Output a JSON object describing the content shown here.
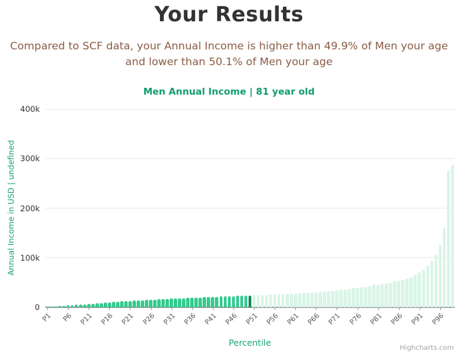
{
  "header": {
    "title": "Your Results",
    "subtitle_line1": "Compared to SCF data, your Annual Income is higher than 49.9% of Men your age",
    "subtitle_line2": "and lower than 50.1% of Men your age"
  },
  "chart": {
    "title": "Men Annual Income | 81 year old",
    "y_axis_title": "Annual Income in USD | undefined",
    "x_axis_title": "Percentile",
    "credit": "Highcharts.com",
    "colors": {
      "title_text": "#333333",
      "subtitle_text": "#8a5c44",
      "chart_title_green": "#0f9c6d",
      "axis_title_green": "#17a377",
      "bar_below": "#34cb8d",
      "bar_highlight": "#0e8d55",
      "bar_above": "#d9f5e8",
      "gridline": "#e9e9e9",
      "axis_line": "#9b9b9b"
    }
  },
  "chart_data": {
    "type": "bar",
    "title": "Men Annual Income | 81 year old",
    "xlabel": "Percentile",
    "ylabel": "Annual Income in USD | undefined",
    "ylim": [
      0,
      400000
    ],
    "grid": true,
    "y_tick_values": [
      0,
      100000,
      200000,
      300000,
      400000
    ],
    "y_tick_labels": [
      "0",
      "100k",
      "200k",
      "300k",
      "400k"
    ],
    "x_label_interval": 5,
    "highlight_index": 49,
    "highlight_category": "P50",
    "categories": [
      "P1",
      "P2",
      "P3",
      "P4",
      "P5",
      "P6",
      "P7",
      "P8",
      "P9",
      "P10",
      "P11",
      "P12",
      "P13",
      "P14",
      "P15",
      "P16",
      "P17",
      "P18",
      "P19",
      "P20",
      "P21",
      "P22",
      "P23",
      "P24",
      "P25",
      "P26",
      "P27",
      "P28",
      "P29",
      "P30",
      "P31",
      "P32",
      "P33",
      "P34",
      "P35",
      "P36",
      "P37",
      "P38",
      "P39",
      "P40",
      "P41",
      "P42",
      "P43",
      "P44",
      "P45",
      "P46",
      "P47",
      "P48",
      "P49",
      "P50",
      "P51",
      "P52",
      "P53",
      "P54",
      "P55",
      "P56",
      "P57",
      "P58",
      "P59",
      "P60",
      "P61",
      "P62",
      "P63",
      "P64",
      "P65",
      "P66",
      "P67",
      "P68",
      "P69",
      "P70",
      "P71",
      "P72",
      "P73",
      "P74",
      "P75",
      "P76",
      "P77",
      "P78",
      "P79",
      "P80",
      "P81",
      "P82",
      "P83",
      "P84",
      "P85",
      "P86",
      "P87",
      "P88",
      "P89",
      "P90",
      "P91",
      "P92",
      "P93",
      "P94",
      "P95",
      "P96",
      "P97",
      "P98",
      "P99"
    ],
    "values": [
      600,
      1200,
      1800,
      2400,
      3000,
      3600,
      4200,
      5000,
      5600,
      6200,
      7000,
      7600,
      8200,
      9000,
      9600,
      10200,
      11000,
      11500,
      12000,
      12500,
      13000,
      13500,
      14000,
      14500,
      15000,
      15400,
      15800,
      16200,
      16600,
      17000,
      17400,
      17800,
      18200,
      18600,
      19000,
      19300,
      19600,
      20000,
      20300,
      20600,
      21000,
      21300,
      21600,
      22000,
      22300,
      22600,
      23000,
      23300,
      23600,
      24000,
      24300,
      24600,
      25000,
      25300,
      25700,
      26000,
      26400,
      26800,
      27200,
      27600,
      28000,
      28500,
      29000,
      29600,
      30200,
      30800,
      31500,
      32200,
      33000,
      33800,
      34600,
      35500,
      36400,
      37400,
      38500,
      39600,
      40800,
      42000,
      43400,
      45000,
      46000,
      47500,
      49000,
      50500,
      52000,
      54000,
      56000,
      58500,
      61000,
      65000,
      70000,
      76000,
      84000,
      94000,
      107000,
      126000,
      160000,
      275000,
      288000
    ]
  }
}
